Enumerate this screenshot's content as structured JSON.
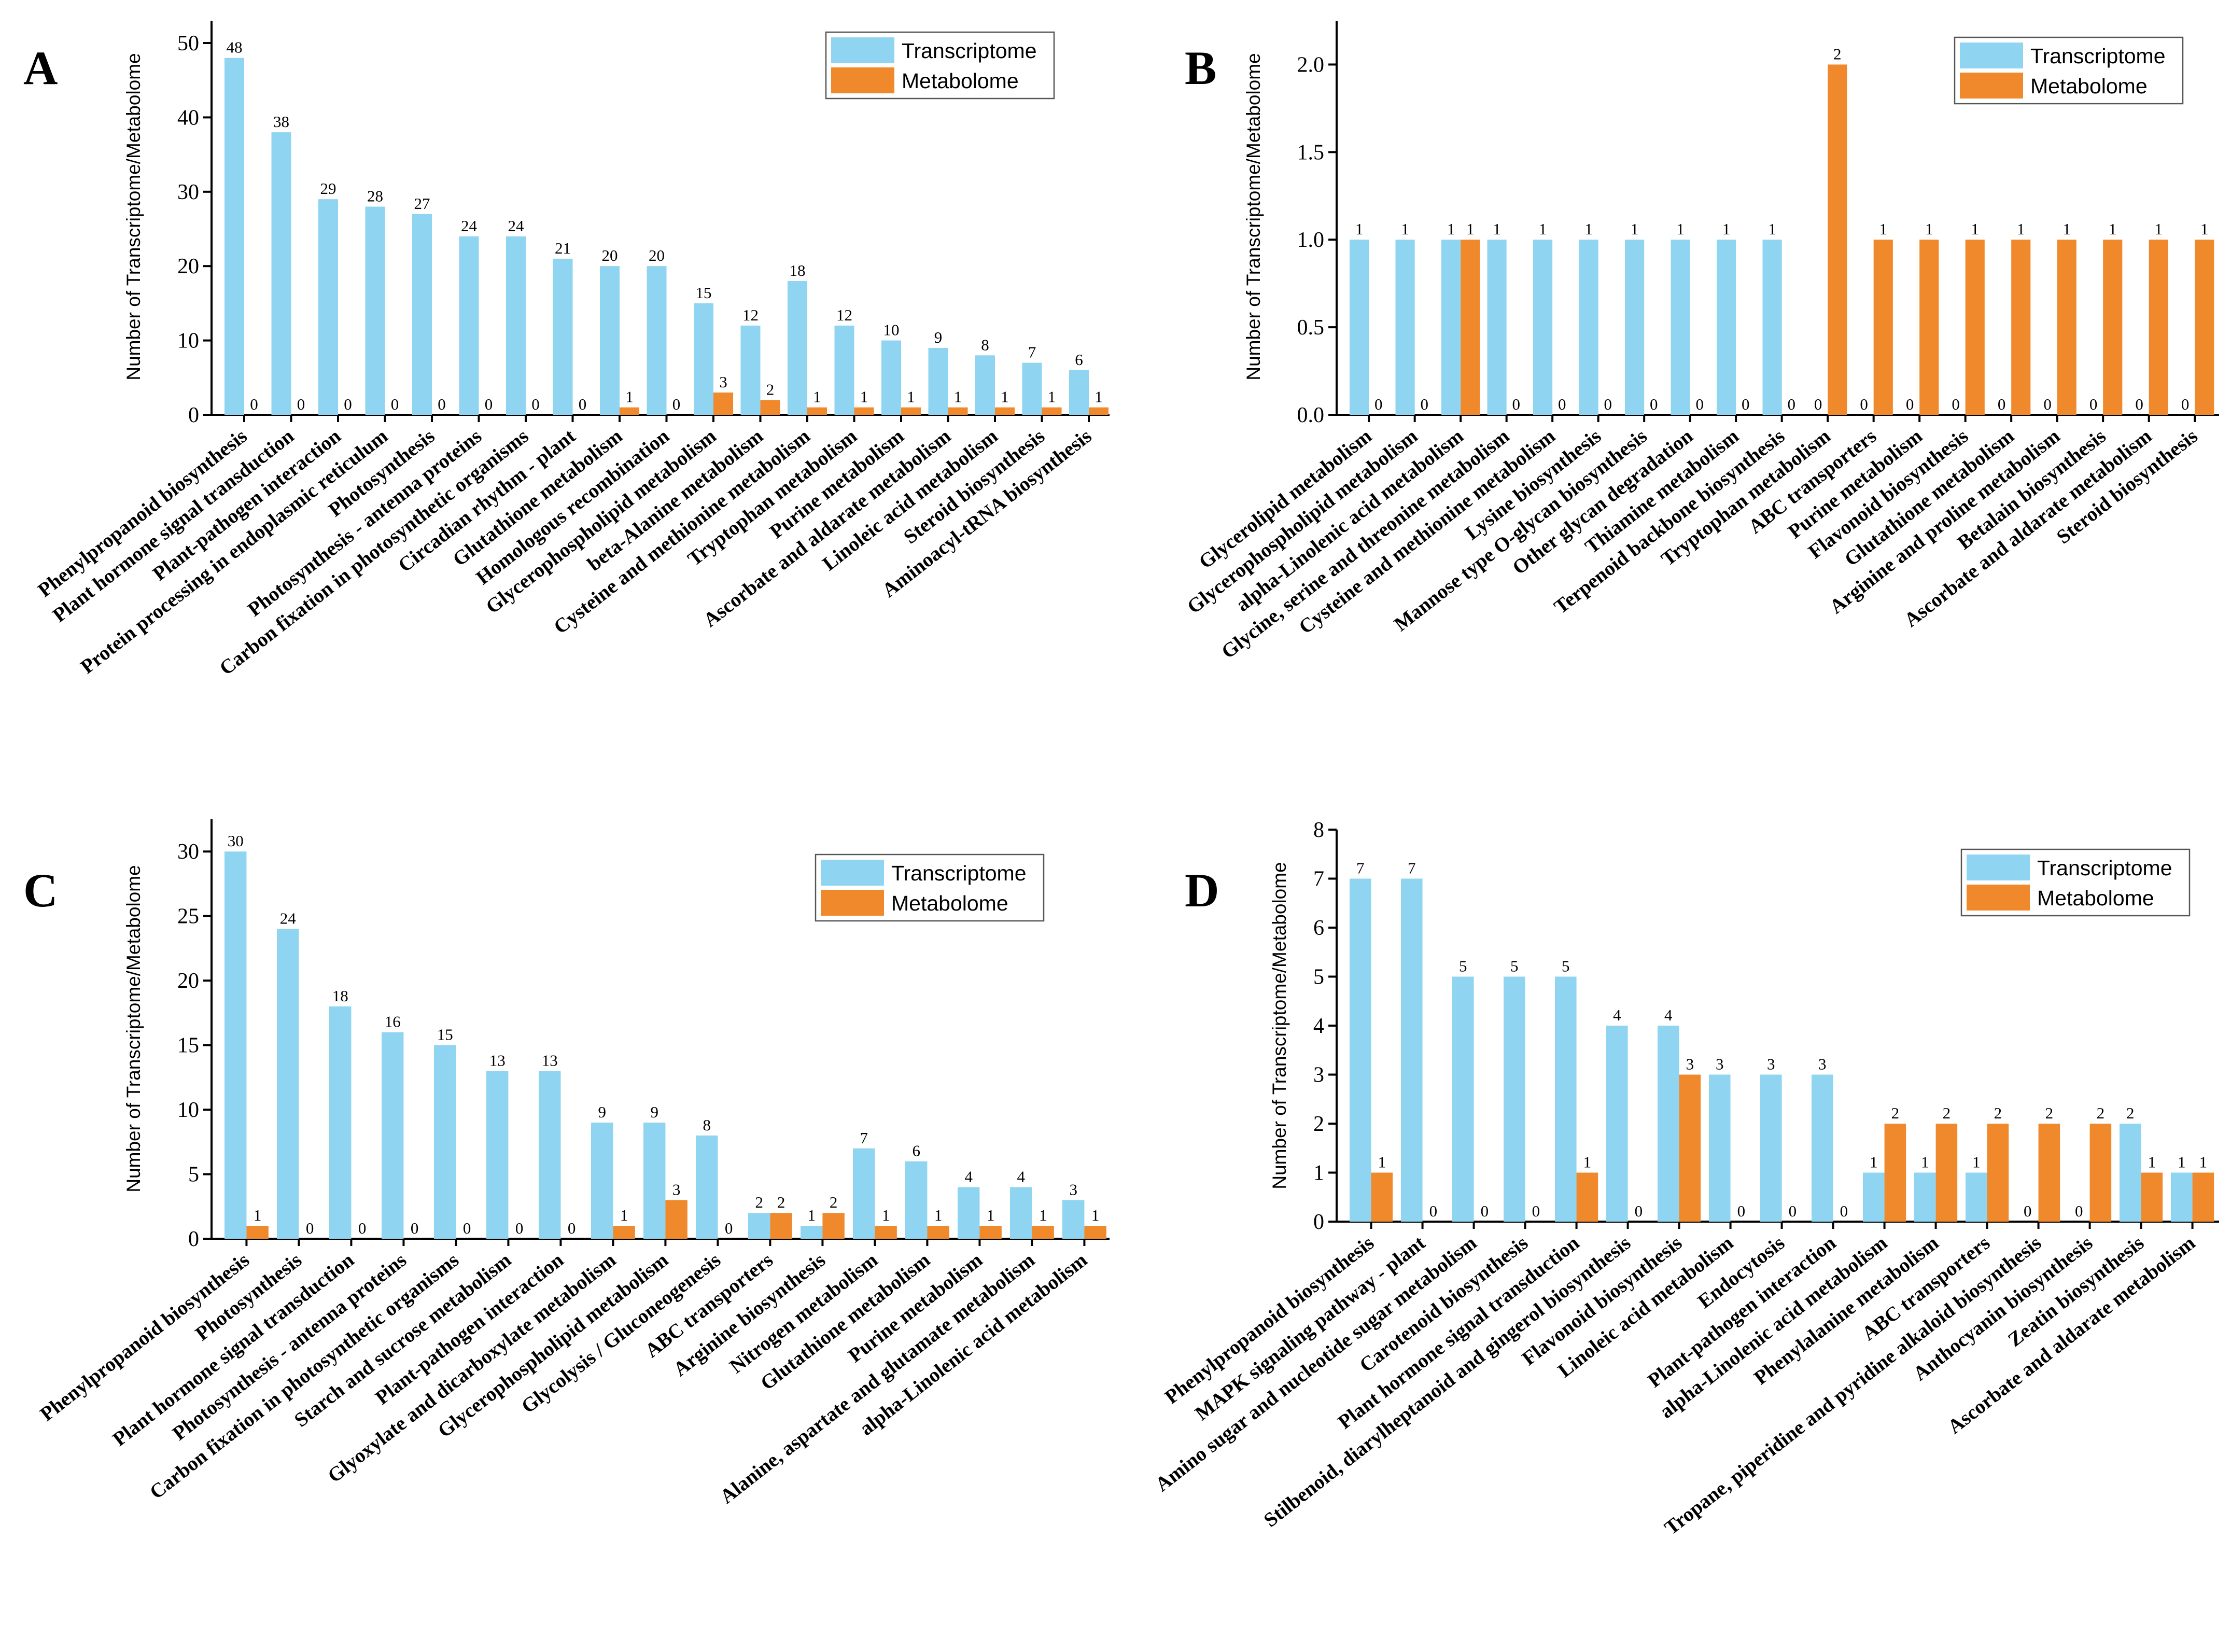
{
  "colors": {
    "transcriptome": "#8fd4f0",
    "metabolome": "#f0892c"
  },
  "chart_data": [
    {
      "panel": "A",
      "type": "bar",
      "ylabel": "Number of Transcriptome/Metabolome",
      "ylim": [
        0,
        53
      ],
      "yticks": [
        0,
        10,
        20,
        30,
        40,
        50
      ],
      "legend": [
        "Transcriptome",
        "Metabolome"
      ],
      "categories": [
        "Phenylpropanoid biosynthesis",
        "Plant hormone signal transduction",
        "Plant-pathogen interaction",
        "Protein processing in endoplasmic reticulum",
        "Photosynthesis",
        "Photosynthesis - antenna proteins",
        "Carbon fixation in photosynthetic organisms",
        "Circadian rhythm - plant",
        "Glutathione metabolism",
        "Homologous recombination",
        "Glycerophospholipid metabolism",
        "beta-Alanine metabolism",
        "Cysteine and methionine metabolism",
        "Tryptophan metabolism",
        "Purine metabolism",
        "Ascorbate and aldarate metabolism",
        "Linoleic acid metabolism",
        "Steroid biosynthesis",
        "Aminoacyl-tRNA biosynthesis"
      ],
      "series": [
        {
          "name": "Transcriptome",
          "values": [
            48,
            38,
            29,
            28,
            27,
            24,
            24,
            21,
            20,
            20,
            15,
            12,
            18,
            12,
            10,
            9,
            8,
            7,
            6
          ]
        },
        {
          "name": "Metabolome",
          "values": [
            0,
            0,
            0,
            0,
            0,
            0,
            0,
            0,
            1,
            0,
            3,
            2,
            1,
            1,
            1,
            1,
            1,
            1,
            1
          ]
        }
      ]
    },
    {
      "panel": "B",
      "type": "bar",
      "ylabel": "Number of Transcriptome/Metabolome",
      "ylim": [
        0,
        2.25
      ],
      "yticks": [
        "0.0",
        "0.5",
        "1.0",
        "1.5",
        "2.0"
      ],
      "legend": [
        "Transcriptome",
        "Metabolome"
      ],
      "categories": [
        "Glycerolipid metabolism",
        "Glycerophospholipid metabolism",
        "alpha-Linolenic acid metabolism",
        "Glycine, serine and threonine metabolism",
        "Cysteine and methionine metabolism",
        "Lysine biosynthesis",
        "Mannose type O-glycan biosynthesis",
        "Other glycan degradation",
        "Thiamine metabolism",
        "Terpenoid backbone biosynthesis",
        "Tryptophan metabolism",
        "ABC transporters",
        "Purine metabolism",
        "Flavonoid biosynthesis",
        "Glutathione metabolism",
        "Arginine and proline metabolism",
        "Betalain biosynthesis",
        "Ascorbate and aldarate metabolism",
        "Steroid biosynthesis"
      ],
      "series": [
        {
          "name": "Transcriptome",
          "values": [
            1,
            1,
            1,
            1,
            1,
            1,
            1,
            1,
            1,
            1,
            0,
            0,
            0,
            0,
            0,
            0,
            0,
            0,
            0
          ]
        },
        {
          "name": "Metabolome",
          "values": [
            0,
            0,
            1,
            0,
            0,
            0,
            0,
            0,
            0,
            0,
            2,
            1,
            1,
            1,
            1,
            1,
            1,
            1,
            1
          ]
        }
      ]
    },
    {
      "panel": "C",
      "type": "bar",
      "ylabel": "Number of Transcriptome/Metabolome",
      "ylim": [
        0,
        32.5
      ],
      "yticks": [
        0,
        5,
        10,
        15,
        20,
        25,
        30
      ],
      "legend": [
        "Transcriptome",
        "Metabolome"
      ],
      "categories": [
        "Phenylpropanoid biosynthesis",
        "Photosynthesis",
        "Plant hormone signal transduction",
        "Photosynthesis - antenna proteins",
        "Carbon fixation in photosynthetic organisms",
        "Starch and sucrose metabolism",
        "Plant-pathogen interaction",
        "Glyoxylate and dicarboxylate metabolism",
        "Glycerophospholipid metabolism",
        "Glycolysis / Gluconeogenesis",
        "ABC transporters",
        "Arginine biosynthesis",
        "Nitrogen metabolism",
        "Glutathione metabolism",
        "Purine metabolism",
        "Alanine, aspartate and glutamate metabolism",
        "alpha-Linolenic acid metabolism"
      ],
      "series": [
        {
          "name": "Transcriptome",
          "values": [
            30,
            24,
            18,
            16,
            15,
            13,
            13,
            9,
            9,
            8,
            2,
            1,
            7,
            6,
            4,
            4,
            3
          ]
        },
        {
          "name": "Metabolome",
          "values": [
            1,
            0,
            0,
            0,
            0,
            0,
            0,
            1,
            3,
            0,
            2,
            2,
            1,
            1,
            1,
            1,
            1
          ]
        }
      ]
    },
    {
      "panel": "D",
      "type": "bar",
      "ylabel": "Number of Transcriptome/Metabolome",
      "ylim": [
        0,
        8
      ],
      "yticks": [
        0,
        1,
        2,
        3,
        4,
        5,
        6,
        7,
        8
      ],
      "legend": [
        "Transcriptome",
        "Metabolome"
      ],
      "categories": [
        "Phenylpropanoid biosynthesis",
        "MAPK signaling pathway - plant",
        "Amino sugar and nucleotide sugar metabolism",
        "Carotenoid biosynthesis",
        "Plant hormone signal transduction",
        "Stilbenoid, diarylheptanoid and gingerol biosynthesis",
        "Flavonoid biosynthesis",
        "Linoleic acid metabolism",
        "Endocytosis",
        "Plant-pathogen interaction",
        "alpha-Linolenic acid metabolism",
        "Phenylalanine metabolism",
        "ABC transporters",
        "Tropane, piperidine and pyridine alkaloid biosynthesis",
        "Anthocyanin biosynthesis",
        "Zeatin biosynthesis",
        "Ascorbate and aldarate metabolism"
      ],
      "series": [
        {
          "name": "Transcriptome",
          "values": [
            7,
            7,
            5,
            5,
            5,
            4,
            4,
            3,
            3,
            3,
            1,
            1,
            1,
            0,
            0,
            2,
            1
          ]
        },
        {
          "name": "Metabolome",
          "values": [
            1,
            0,
            0,
            0,
            1,
            0,
            3,
            0,
            0,
            0,
            2,
            2,
            2,
            2,
            2,
            1,
            1
          ]
        }
      ]
    }
  ]
}
